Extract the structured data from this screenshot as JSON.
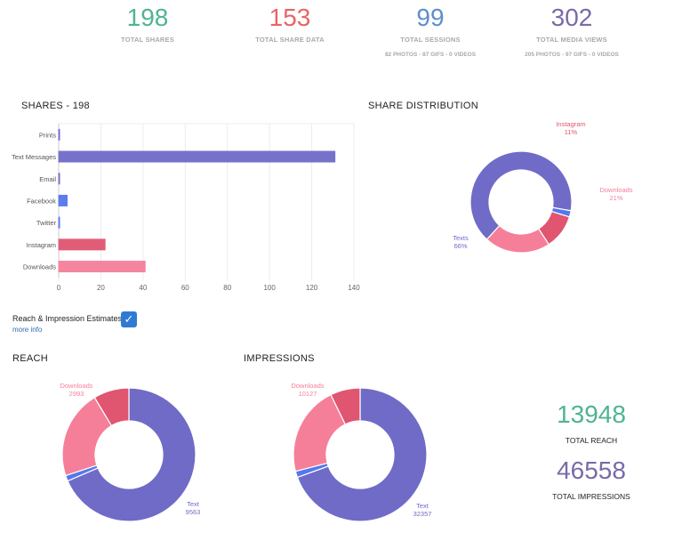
{
  "colors": {
    "teal": "#4fb394",
    "red": "#e96465",
    "blue": "#5d8ec9",
    "purple": "#7a6aa8",
    "bar_purple": "#6f6bc7",
    "pink": "#f57f99",
    "dark_pink": "#e05570",
    "fb_blue": "#5577ee"
  },
  "stats": [
    {
      "value": "198",
      "label": "TOTAL SHARES",
      "sub": ""
    },
    {
      "value": "153",
      "label": "TOTAL SHARE DATA",
      "sub": ""
    },
    {
      "value": "99",
      "label": "TOTAL SESSIONS",
      "sub": "82 PHOTOS - 87 GIFS - 0 VIDEOS"
    },
    {
      "value": "302",
      "label": "TOTAL MEDIA VIEWS",
      "sub": "205 PHOTOS - 97 GIFS - 0 VIDEOS"
    }
  ],
  "shares_title": "SHARES - 198",
  "distribution_title": "SHARE DISTRIBUTION",
  "estimates_label": "Reach & Impression Estimates",
  "estimates_checked": "✓",
  "more_info": "more info",
  "reach_title": "REACH",
  "impressions_title": "IMPRESSIONS",
  "total_reach": {
    "value": "13948",
    "label": "TOTAL REACH"
  },
  "total_impressions": {
    "value": "46558",
    "label": "TOTAL IMPRESSIONS"
  },
  "chart_data": [
    {
      "type": "bar",
      "orientation": "horizontal",
      "title": "SHARES - 198",
      "categories": [
        "Prints",
        "Text Messages",
        "Email",
        "Facebook",
        "Twitter",
        "Instagram",
        "Downloads"
      ],
      "values": [
        0,
        131,
        0,
        4,
        0,
        22,
        41
      ],
      "xlim": [
        0,
        140
      ],
      "xticks": [
        0,
        20,
        40,
        60,
        80,
        100,
        120,
        140
      ],
      "grid": true
    },
    {
      "type": "pie",
      "title": "SHARE DISTRIBUTION",
      "slices": [
        {
          "label": "Text Messages",
          "value": 66,
          "display": "Texts",
          "pct": "66%",
          "labeled": true
        },
        {
          "label": "Facebook",
          "value": 2,
          "display": "",
          "pct": "",
          "labeled": false
        },
        {
          "label": "Instagram",
          "value": 11,
          "display": "Instagram",
          "pct": "11%",
          "labeled": true
        },
        {
          "label": "Downloads",
          "value": 21,
          "display": "Downloads",
          "pct": "21%",
          "labeled": true
        }
      ]
    },
    {
      "type": "pie",
      "title": "REACH",
      "slices": [
        {
          "label": "Text",
          "value": 9563,
          "display": "Text",
          "pct": "9563",
          "labeled": true
        },
        {
          "label": "Facebook",
          "value": 190,
          "display": "",
          "pct": "",
          "labeled": false
        },
        {
          "label": "Downloads",
          "value": 2993,
          "display": "Downloads",
          "pct": "2993",
          "labeled": true
        },
        {
          "label": "Instagram",
          "value": 1202,
          "display": "",
          "pct": "",
          "labeled": false
        }
      ]
    },
    {
      "type": "pie",
      "title": "IMPRESSIONS",
      "slices": [
        {
          "label": "Text",
          "value": 32357,
          "display": "Text",
          "pct": "32357",
          "labeled": true
        },
        {
          "label": "Facebook",
          "value": 700,
          "display": "",
          "pct": "",
          "labeled": false
        },
        {
          "label": "Downloads",
          "value": 10127,
          "display": "Downloads",
          "pct": "10127",
          "labeled": true
        },
        {
          "label": "Instagram",
          "value": 3374,
          "display": "",
          "pct": "",
          "labeled": false
        }
      ]
    }
  ]
}
